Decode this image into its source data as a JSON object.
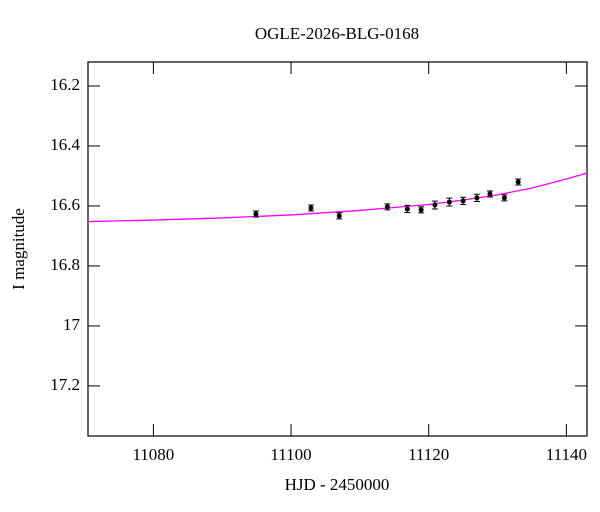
{
  "chart_data": {
    "type": "scatter",
    "title": "OGLE-2026-BLG-0168",
    "xlabel": "HJD - 2450000",
    "ylabel": "I magnitude",
    "xlim": [
      11070.5,
      11143
    ],
    "ylim": [
      17.367,
      16.12
    ],
    "xticks": [
      11080,
      11100,
      11120,
      11140
    ],
    "yticks": [
      16.2,
      16.4,
      16.6,
      16.8,
      17,
      17.2
    ],
    "points": {
      "color": "#000000",
      "x": [
        11094.9,
        11102.9,
        11107,
        11114,
        11116.9,
        11118.9,
        11120.9,
        11123,
        11125,
        11127,
        11128.9,
        11131,
        11133
      ],
      "y": [
        16.627,
        16.607,
        16.633,
        16.603,
        16.61,
        16.613,
        16.597,
        16.587,
        16.583,
        16.573,
        16.56,
        16.573,
        16.52
      ],
      "err": [
        0.01,
        0.01,
        0.01,
        0.01,
        0.012,
        0.01,
        0.013,
        0.013,
        0.012,
        0.012,
        0.01,
        0.01,
        0.01
      ]
    },
    "model": {
      "color": "#ff00ff",
      "x": [
        11070.5,
        11080,
        11090,
        11100,
        11110,
        11120,
        11125,
        11130,
        11135,
        11140,
        11143
      ],
      "y": [
        16.652,
        16.647,
        16.64,
        16.63,
        16.615,
        16.595,
        16.58,
        16.563,
        16.54,
        16.51,
        16.49
      ]
    }
  }
}
